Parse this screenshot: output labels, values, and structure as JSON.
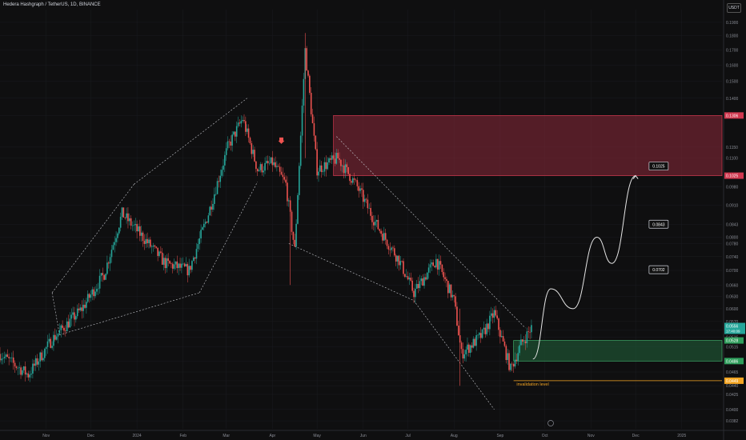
{
  "header": {
    "title": "Hedera Hashgraph / TetherUS, 1D, BINANCE"
  },
  "currency_label": "USDT",
  "colors": {
    "up": "#26a69a",
    "down": "#ef5350",
    "supply_zone": "#8e2a3a",
    "demand_zone": "#1f5e38",
    "invalidation": "#f5a623",
    "background": "#0f0f10"
  },
  "chart_data": {
    "type": "candlestick",
    "title": "Hedera Hashgraph / TetherUS, 1D, BINANCE",
    "y_scale": "log",
    "ylim": [
      0.037,
      0.2
    ],
    "y_ticks": [
      "0.1900",
      "0.1800",
      "0.1700",
      "0.1600",
      "0.1500",
      "0.1400",
      "0.1306",
      "0.1150",
      "0.1100",
      "0.1025",
      "0.0980",
      "0.0910",
      "0.0843",
      "0.0800",
      "0.0780",
      "0.0740",
      "0.0700",
      "0.0660",
      "0.0630",
      "0.0600",
      "0.0570",
      "0.0550",
      "0.0535",
      "0.0515",
      "0.0486",
      "0.0465",
      "0.0449",
      "0.0440",
      "0.0425",
      "0.0400",
      "0.0382"
    ],
    "x_ticks": [
      "Nov",
      "Dec",
      "2024",
      "Feb",
      "Mar",
      "Apr",
      "May",
      "Jun",
      "Jul",
      "Aug",
      "Sep",
      "Oct",
      "Nov",
      "Dec",
      "2025"
    ],
    "last_price": {
      "value": "0.0556",
      "countdown": "17:40:09"
    },
    "key_levels": [
      {
        "label": "0.1306",
        "value": 0.1306
      },
      {
        "label": "0.1025",
        "value": 0.1025
      },
      {
        "label": "0.0528",
        "value": 0.0528
      },
      {
        "label": "0.0486",
        "value": 0.0486
      },
      {
        "label": "0.0449",
        "value": 0.0449
      }
    ],
    "zones": [
      {
        "type": "supply",
        "from": 0.1025,
        "to": 0.1306
      },
      {
        "type": "demand",
        "from": 0.0486,
        "to": 0.0528
      }
    ],
    "targets": [
      {
        "label": "0.1025",
        "value": 0.1025
      },
      {
        "label": "0.0843",
        "value": 0.0843
      },
      {
        "label": "0.0702",
        "value": 0.0702
      }
    ],
    "annotations": [
      {
        "text": "invalidation level",
        "value": 0.0449
      }
    ],
    "waypoints": [
      {
        "date": "2023-10-01",
        "price": 0.05
      },
      {
        "date": "2023-10-20",
        "price": 0.046
      },
      {
        "date": "2023-11-05",
        "price": 0.053
      },
      {
        "date": "2023-11-25",
        "price": 0.06
      },
      {
        "date": "2023-12-10",
        "price": 0.069
      },
      {
        "date": "2023-12-22",
        "price": 0.088
      },
      {
        "date": "2024-01-05",
        "price": 0.08
      },
      {
        "date": "2024-01-20",
        "price": 0.072
      },
      {
        "date": "2024-02-05",
        "price": 0.07
      },
      {
        "date": "2024-02-18",
        "price": 0.088
      },
      {
        "date": "2024-03-02",
        "price": 0.115
      },
      {
        "date": "2024-03-12",
        "price": 0.129
      },
      {
        "date": "2024-03-22",
        "price": 0.105
      },
      {
        "date": "2024-04-01",
        "price": 0.108
      },
      {
        "date": "2024-04-10",
        "price": 0.099
      },
      {
        "date": "2024-04-16",
        "price": 0.076
      },
      {
        "date": "2024-04-23",
        "price": 0.17
      },
      {
        "date": "2024-05-01",
        "price": 0.105
      },
      {
        "date": "2024-05-15",
        "price": 0.11
      },
      {
        "date": "2024-05-28",
        "price": 0.098
      },
      {
        "date": "2024-06-10",
        "price": 0.084
      },
      {
        "date": "2024-06-25",
        "price": 0.073
      },
      {
        "date": "2024-07-05",
        "price": 0.064
      },
      {
        "date": "2024-07-20",
        "price": 0.073
      },
      {
        "date": "2024-08-01",
        "price": 0.062
      },
      {
        "date": "2024-08-06",
        "price": 0.05
      },
      {
        "date": "2024-08-20",
        "price": 0.054
      },
      {
        "date": "2024-08-28",
        "price": 0.059
      },
      {
        "date": "2024-09-08",
        "price": 0.047
      },
      {
        "date": "2024-09-15",
        "price": 0.052
      },
      {
        "date": "2024-09-22",
        "price": 0.0556
      }
    ],
    "projection": [
      {
        "date": "2024-09-23",
        "price": 0.049
      },
      {
        "date": "2024-10-05",
        "price": 0.065
      },
      {
        "date": "2024-10-20",
        "price": 0.06
      },
      {
        "date": "2024-11-05",
        "price": 0.08
      },
      {
        "date": "2024-11-15",
        "price": 0.072
      },
      {
        "date": "2024-12-01",
        "price": 0.1025
      }
    ]
  }
}
